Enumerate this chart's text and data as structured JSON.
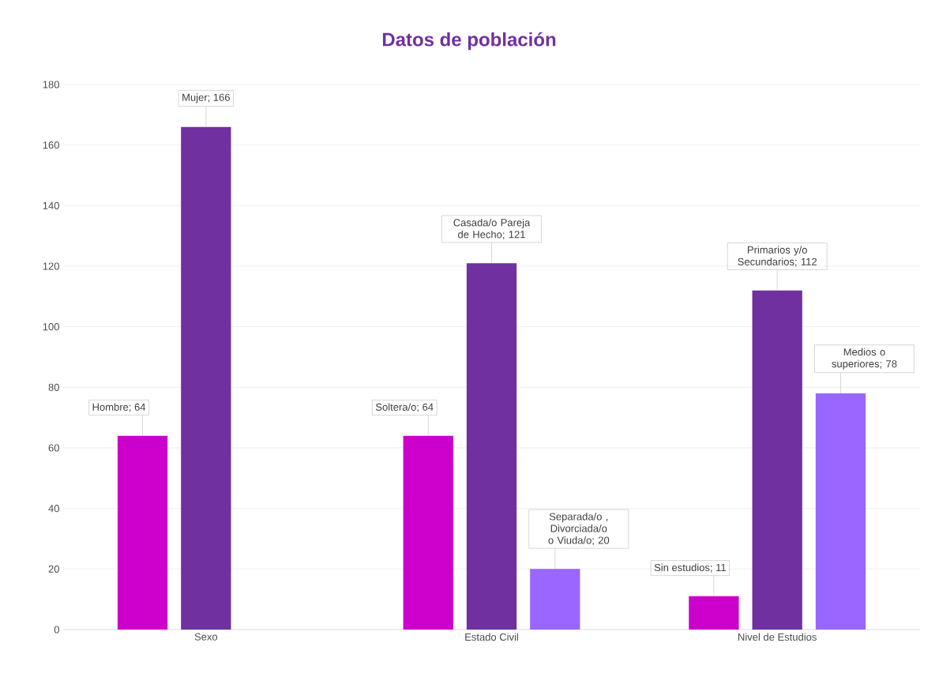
{
  "chart_data": {
    "type": "bar",
    "title": "Datos de población",
    "categories": [
      "Sexo",
      "Estado Civil",
      "Nivel de Estudios"
    ],
    "series": [
      {
        "color": "#cc00cc",
        "values": [
          64,
          64,
          11
        ],
        "value_labels": [
          "Hombre; 64",
          "Soltera/o; 64",
          "Sin estudios; 11"
        ]
      },
      {
        "color": "#7030a0",
        "values": [
          166,
          121,
          112
        ],
        "value_labels": [
          "Mujer; 166",
          "Casada/o Pareja de Hecho; 121",
          "Primarios y/o Secundarios; 112"
        ]
      },
      {
        "color": "#9966ff",
        "values": [
          null,
          20,
          78
        ],
        "value_labels": [
          null,
          "Separada/o , Divorciada/o o Viuda/o; 20",
          "Medios o superiores; 78"
        ]
      }
    ],
    "ylim": [
      0,
      180
    ],
    "yticks": [
      0,
      20,
      40,
      60,
      80,
      100,
      120,
      140,
      160,
      180
    ],
    "grid": "y"
  }
}
